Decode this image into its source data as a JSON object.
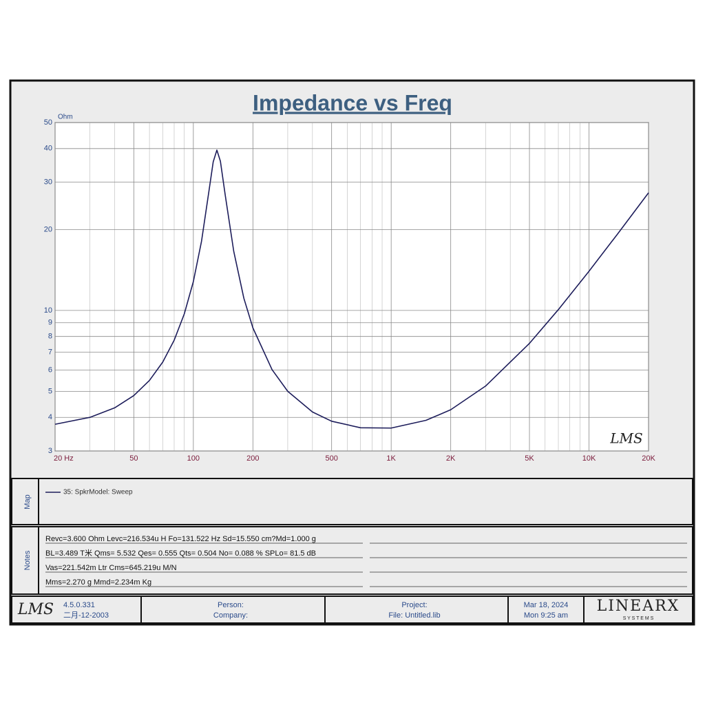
{
  "chart_data": {
    "type": "line",
    "title": "Impedance vs Freq",
    "y_label": "Ohm",
    "x": [
      20,
      30,
      40,
      50,
      60,
      70,
      80,
      90,
      100,
      110,
      120,
      126,
      131.5,
      137,
      145,
      160,
      180,
      200,
      250,
      300,
      400,
      500,
      700,
      1000,
      1500,
      2000,
      3000,
      5000,
      7000,
      10000,
      14000,
      20000
    ],
    "series": [
      {
        "name": "35: SpkrModel: Sweep",
        "color": "#1c1c5a",
        "values": [
          3.77,
          4.0,
          4.34,
          4.82,
          5.49,
          6.42,
          7.75,
          9.71,
          12.8,
          18.1,
          27.9,
          35.7,
          39.5,
          35.9,
          26.8,
          16.6,
          11.1,
          8.61,
          6.02,
          5.0,
          4.19,
          3.87,
          3.66,
          3.65,
          3.9,
          4.27,
          5.23,
          7.54,
          10.07,
          13.99,
          19.32,
          27.4
        ]
      }
    ],
    "xlim": [
      20,
      20000
    ],
    "ylim": [
      3,
      50
    ],
    "xticks": [
      {
        "value": 20,
        "label": "20  Hz"
      },
      50,
      100,
      200,
      500,
      {
        "value": 1000,
        "label": "1K"
      },
      {
        "value": 2000,
        "label": "2K"
      },
      {
        "value": 5000,
        "label": "5K"
      },
      {
        "value": 10000,
        "label": "10K"
      },
      {
        "value": 20000,
        "label": "20K"
      }
    ],
    "yticks": [
      3,
      4,
      5,
      6,
      7,
      8,
      9,
      10,
      20,
      30,
      40,
      50
    ],
    "x_minor_grid": [
      30,
      40,
      60,
      70,
      80,
      90,
      300,
      400,
      600,
      700,
      800,
      900,
      3000,
      4000,
      6000,
      7000,
      8000,
      9000
    ],
    "xscale": "log",
    "yscale": "log",
    "grid": true,
    "watermark": "LMS"
  },
  "map": {
    "label": "Map"
  },
  "notes": {
    "label": "Notes",
    "lines": [
      "Revc=3.600 Ohm  Levc=216.534u H  Fo=131.522 Hz  Sd=15.550 cm?Md=1.000 g",
      "BL=3.489 T米  Qms= 5.532  Qes= 0.555  Qts= 0.504  No= 0.088 %  SPLo= 81.5 dB",
      "Vas=221.542m Ltr  Cms=645.219u M/N",
      "Mms=2.270 g  Mmd=2.234m Kg"
    ]
  },
  "footer": {
    "logo": "LMS",
    "version": "4.5.0.331",
    "build_date": "二月-12-2003",
    "person": "Person:",
    "company": "Company:",
    "project": "Project:",
    "file": "File: Untitled.lib",
    "date": "Mar 18, 2024",
    "time": "Mon  9:25 am",
    "brand": "LINEARX",
    "brand_sub": "S Y S T E M S"
  }
}
